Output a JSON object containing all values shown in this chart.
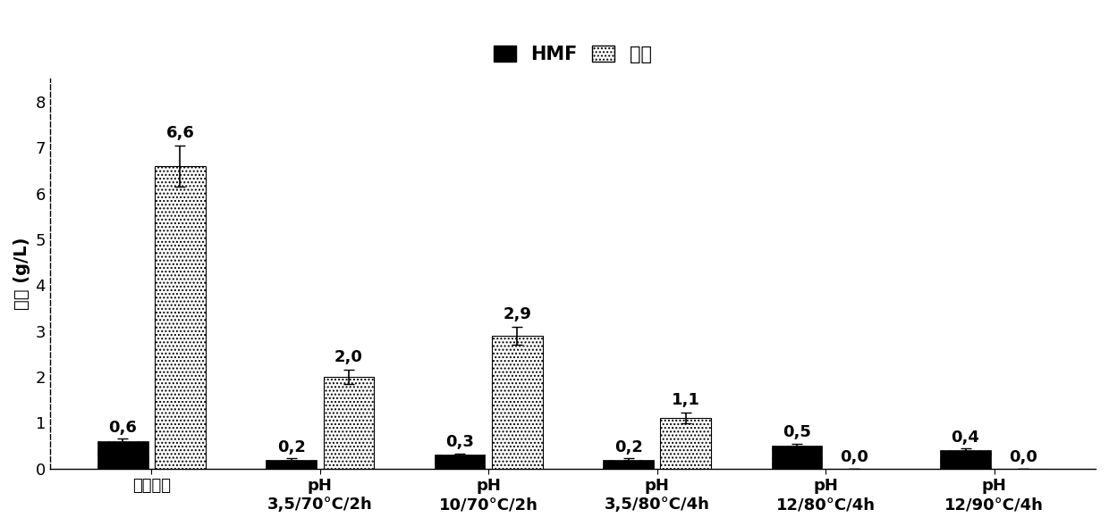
{
  "categories": [
    "水解产物",
    "pH\n3,5/70°C/2h",
    "pH\n10/70°C/2h",
    "pH\n3,5/80°C/4h",
    "pH\n12/80°C/4h",
    "pH\n12/90°C/4h"
  ],
  "hmf_values": [
    0.6,
    0.2,
    0.3,
    0.2,
    0.5,
    0.4
  ],
  "hmf_errors": [
    0.05,
    0.02,
    0.03,
    0.02,
    0.04,
    0.04
  ],
  "furfural_values": [
    6.6,
    2.0,
    2.9,
    1.1,
    0.0,
    0.0
  ],
  "furfural_errors": [
    0.45,
    0.15,
    0.2,
    0.12,
    0.0,
    0.0
  ],
  "hmf_labels": [
    "0,6",
    "0,2",
    "0,3",
    "0,2",
    "0,5",
    "0,4"
  ],
  "furfural_labels": [
    "6,6",
    "2,0",
    "2,9",
    "1,1",
    "0,0",
    "0,0"
  ],
  "ylabel": "浓度 (g/L)",
  "ylim": [
    0,
    8.5
  ],
  "yticks": [
    0,
    1,
    2,
    3,
    4,
    5,
    6,
    7,
    8
  ],
  "legend_hmf": "HMF",
  "legend_furfural": "糾醒",
  "bar_width": 0.3,
  "background_color": "#ffffff",
  "title_fontsize": 15,
  "axis_fontsize": 14,
  "tick_fontsize": 13,
  "label_fontsize": 13
}
